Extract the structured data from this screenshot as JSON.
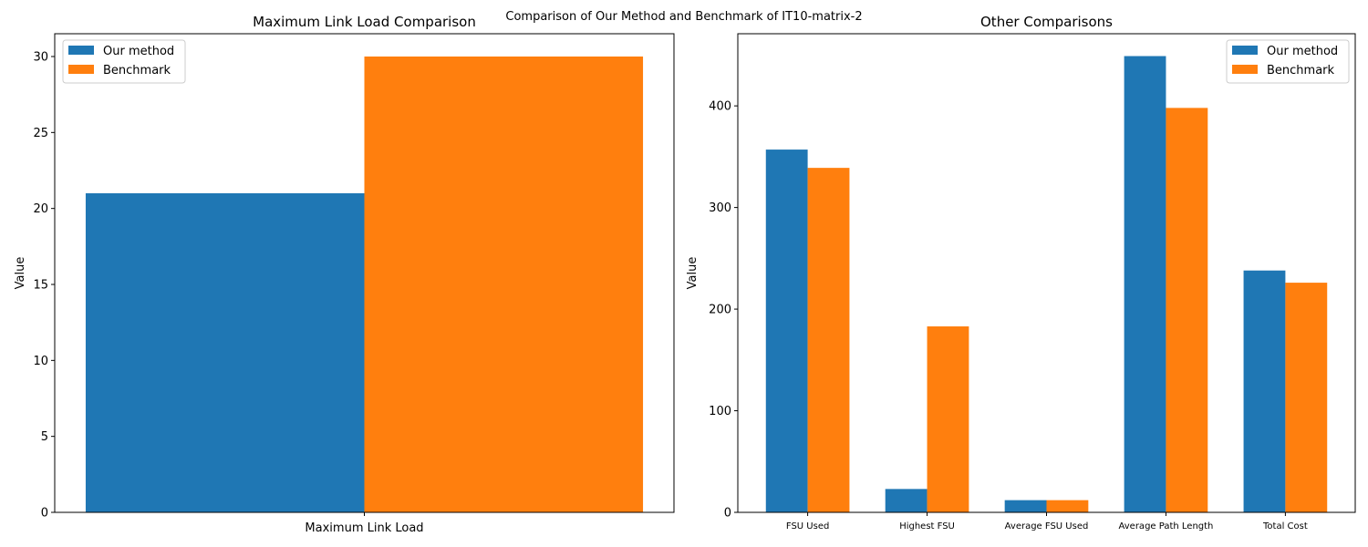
{
  "figure_title": "Comparison of Our Method and Benchmark of IT10-matrix-2",
  "colors": {
    "our_method": "#1f77b4",
    "benchmark": "#ff7f0e"
  },
  "chart_data": [
    {
      "type": "bar",
      "title": "Maximum Link Load Comparison",
      "xlabel": "",
      "ylabel": "Value",
      "categories": [
        "Maximum Link Load"
      ],
      "series": [
        {
          "name": "Our method",
          "values": [
            21
          ]
        },
        {
          "name": "Benchmark",
          "values": [
            30
          ]
        }
      ],
      "ylim": [
        0,
        31.5
      ],
      "yticks": [
        0,
        5,
        10,
        15,
        20,
        25,
        30
      ],
      "grid": false,
      "legend": "top-left"
    },
    {
      "type": "bar",
      "title": "Other Comparisons",
      "xlabel": "",
      "ylabel": "Value",
      "categories": [
        "FSU Used",
        "Highest FSU",
        "Average FSU Used",
        "Average Path Length",
        "Total Cost"
      ],
      "series": [
        {
          "name": "Our method",
          "values": [
            357,
            23,
            12,
            449,
            238
          ]
        },
        {
          "name": "Benchmark",
          "values": [
            339,
            183,
            12,
            398,
            226
          ]
        }
      ],
      "ylim": [
        0,
        471
      ],
      "yticks": [
        0,
        100,
        200,
        300,
        400
      ],
      "grid": false,
      "legend": "top-right"
    }
  ]
}
